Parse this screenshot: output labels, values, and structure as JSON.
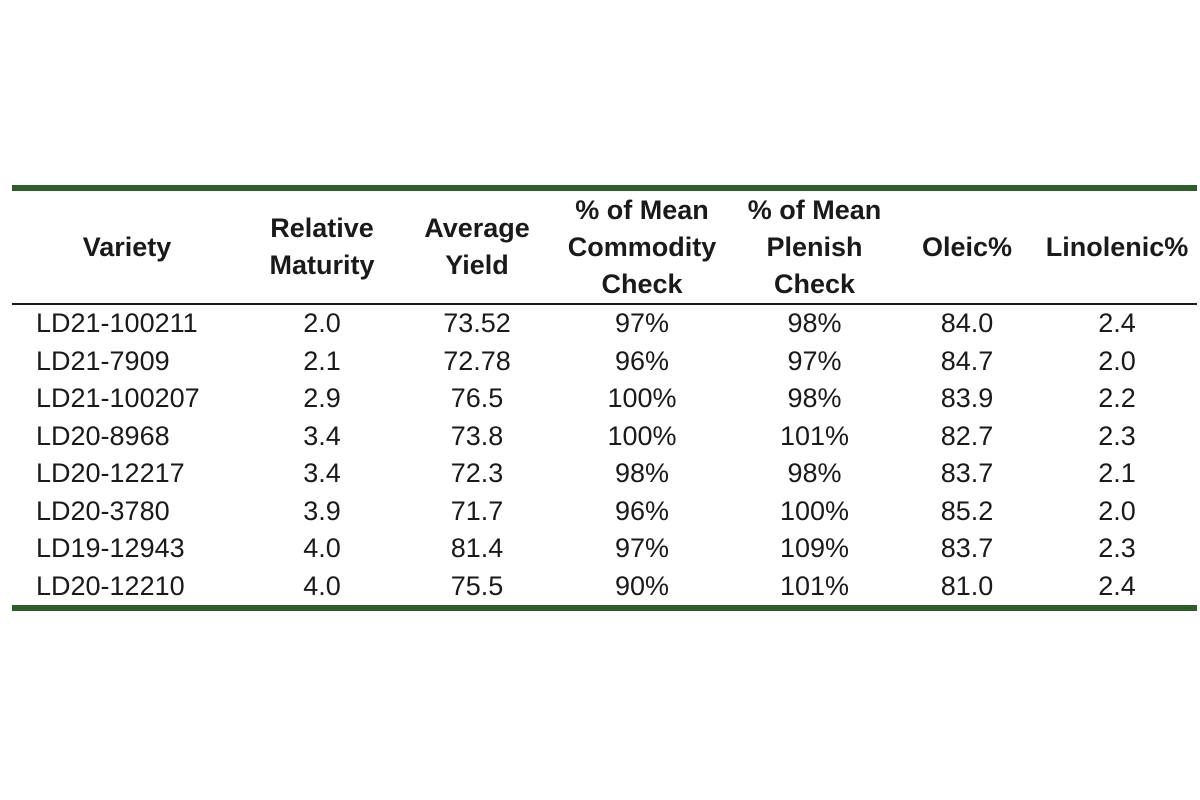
{
  "table": {
    "headers": [
      {
        "lines": [
          "Variety"
        ]
      },
      {
        "lines": [
          "Relative",
          "Maturity"
        ]
      },
      {
        "lines": [
          "Average",
          "Yield"
        ]
      },
      {
        "lines": [
          "% of Mean",
          "Commodity",
          "Check"
        ]
      },
      {
        "lines": [
          "% of Mean",
          "Plenish",
          "Check"
        ]
      },
      {
        "lines": [
          "Oleic%"
        ]
      },
      {
        "lines": [
          "Linolenic%"
        ]
      }
    ],
    "rows": [
      [
        "LD21-100211",
        "2.0",
        "73.52",
        "97%",
        "98%",
        "84.0",
        "2.4"
      ],
      [
        "LD21-7909",
        "2.1",
        "72.78",
        "96%",
        "97%",
        "84.7",
        "2.0"
      ],
      [
        "LD21-100207",
        "2.9",
        "76.5",
        "100%",
        "98%",
        "83.9",
        "2.2"
      ],
      [
        "LD20-8968",
        "3.4",
        "73.8",
        "100%",
        "101%",
        "82.7",
        "2.3"
      ],
      [
        "LD20-12217",
        "3.4",
        "72.3",
        "98%",
        "98%",
        "83.7",
        "2.1"
      ],
      [
        "LD20-3780",
        "3.9",
        "71.7",
        "96%",
        "100%",
        "85.2",
        "2.0"
      ],
      [
        "LD19-12943",
        "4.0",
        "81.4",
        "97%",
        "109%",
        "83.7",
        "2.3"
      ],
      [
        "LD20-12210",
        "4.0",
        "75.5",
        "90%",
        "101%",
        "81.0",
        "2.4"
      ]
    ]
  },
  "colors": {
    "accent_rule": "#2e5c2b",
    "text": "#1a1a1a"
  }
}
